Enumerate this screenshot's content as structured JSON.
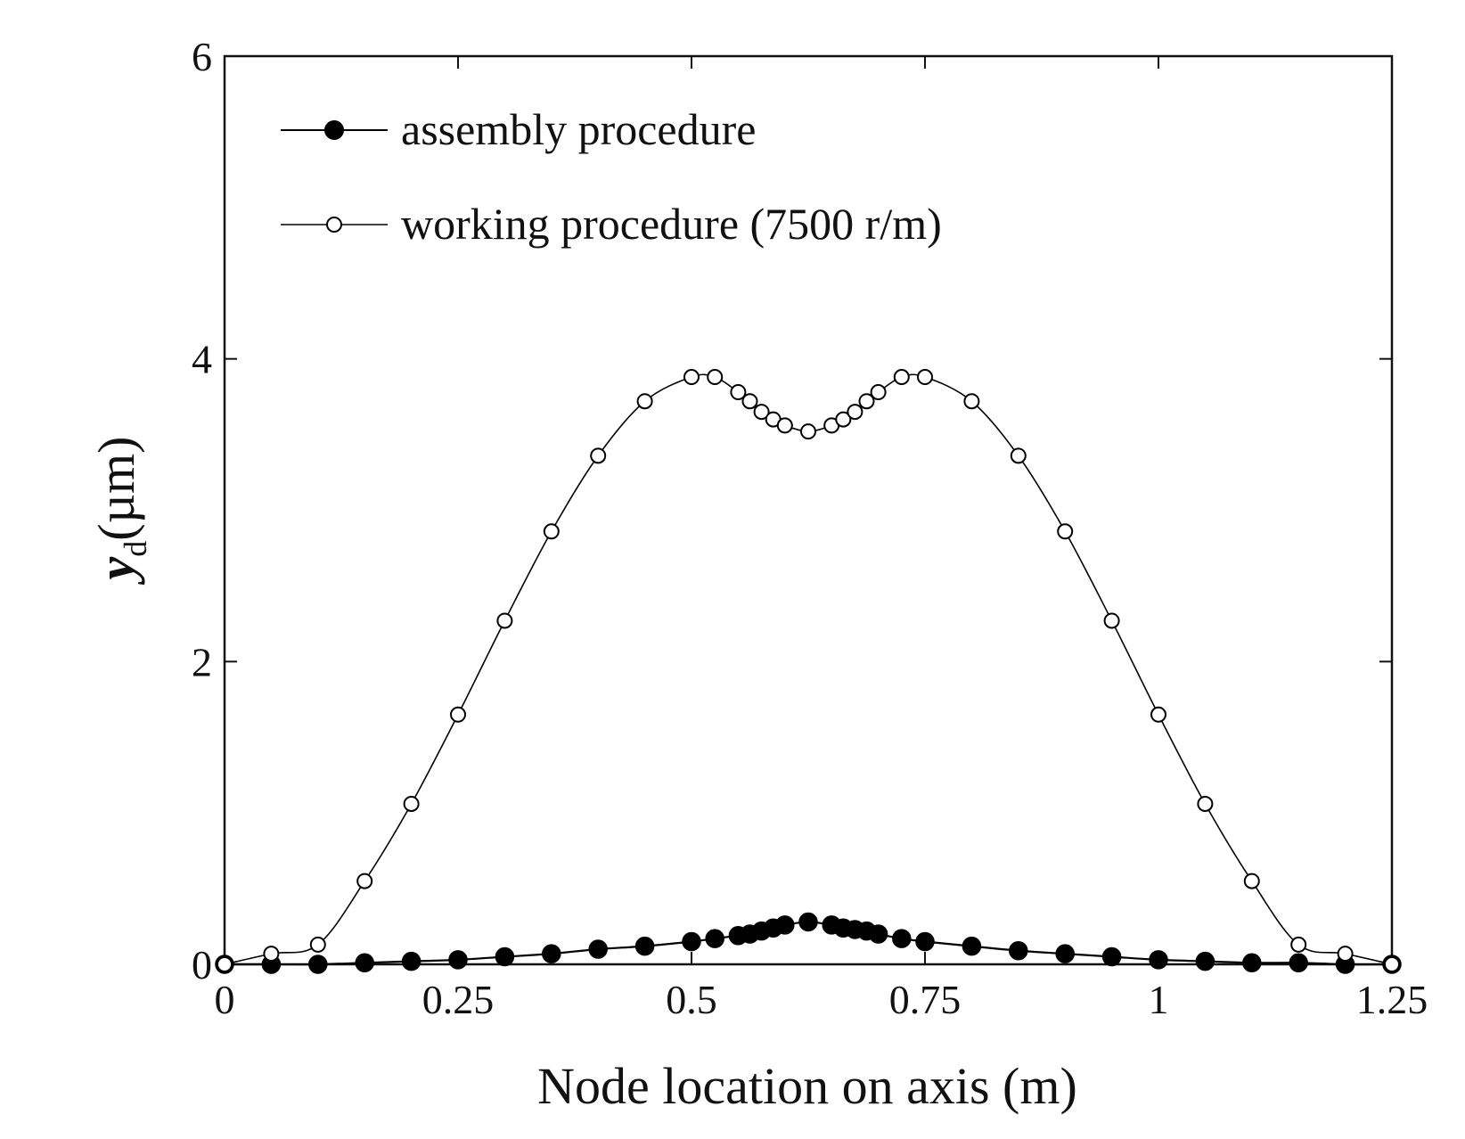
{
  "chart_data": {
    "type": "line",
    "title": "",
    "xlabel": "Node location on axis (m)",
    "ylabel_main": "y",
    "ylabel_sub": "d",
    "ylabel_unit": "(µm)",
    "xlim": [
      0,
      1.25
    ],
    "ylim": [
      0,
      6
    ],
    "xticks": [
      0,
      0.25,
      0.5,
      0.75,
      1,
      1.25
    ],
    "xtick_labels": [
      "0",
      "0.25",
      "0.5",
      "0.75",
      "1",
      "1.25"
    ],
    "yticks": [
      0,
      2,
      4,
      6
    ],
    "ytick_labels": [
      "0",
      "2",
      "4",
      "6"
    ],
    "grid": false,
    "legend_position": "top-left",
    "series": [
      {
        "name": "assembly procedure",
        "marker": "filled-circle",
        "color": "#000000",
        "x": [
          0,
          0.05,
          0.1,
          0.15,
          0.2,
          0.25,
          0.3,
          0.35,
          0.4,
          0.45,
          0.5,
          0.525,
          0.55,
          0.5625,
          0.575,
          0.5875,
          0.6,
          0.625,
          0.65,
          0.6625,
          0.675,
          0.6875,
          0.7,
          0.725,
          0.75,
          0.8,
          0.85,
          0.9,
          0.95,
          1,
          1.05,
          1.1,
          1.15,
          1.2,
          1.25
        ],
        "y": [
          0.0,
          0.0,
          0.0,
          0.01,
          0.02,
          0.03,
          0.05,
          0.07,
          0.1,
          0.12,
          0.15,
          0.17,
          0.19,
          0.2,
          0.22,
          0.24,
          0.26,
          0.28,
          0.26,
          0.24,
          0.23,
          0.22,
          0.2,
          0.17,
          0.15,
          0.12,
          0.09,
          0.07,
          0.05,
          0.03,
          0.02,
          0.01,
          0.01,
          0.0,
          0.0
        ]
      },
      {
        "name": "working procedure (7500 r/m)",
        "marker": "open-circle",
        "color": "#000000",
        "x": [
          0,
          0.05,
          0.1,
          0.15,
          0.2,
          0.25,
          0.3,
          0.35,
          0.4,
          0.45,
          0.5,
          0.525,
          0.55,
          0.5625,
          0.575,
          0.5875,
          0.6,
          0.625,
          0.65,
          0.6625,
          0.675,
          0.6875,
          0.7,
          0.725,
          0.75,
          0.8,
          0.85,
          0.9,
          0.95,
          1,
          1.05,
          1.1,
          1.15,
          1.2,
          1.25
        ],
        "y": [
          0.0,
          0.07,
          0.13,
          0.55,
          1.06,
          1.65,
          2.27,
          2.86,
          3.36,
          3.72,
          3.88,
          3.88,
          3.78,
          3.72,
          3.65,
          3.6,
          3.56,
          3.52,
          3.56,
          3.6,
          3.65,
          3.72,
          3.78,
          3.88,
          3.88,
          3.72,
          3.36,
          2.86,
          2.27,
          1.65,
          1.06,
          0.55,
          0.13,
          0.07,
          0.0
        ]
      }
    ]
  }
}
